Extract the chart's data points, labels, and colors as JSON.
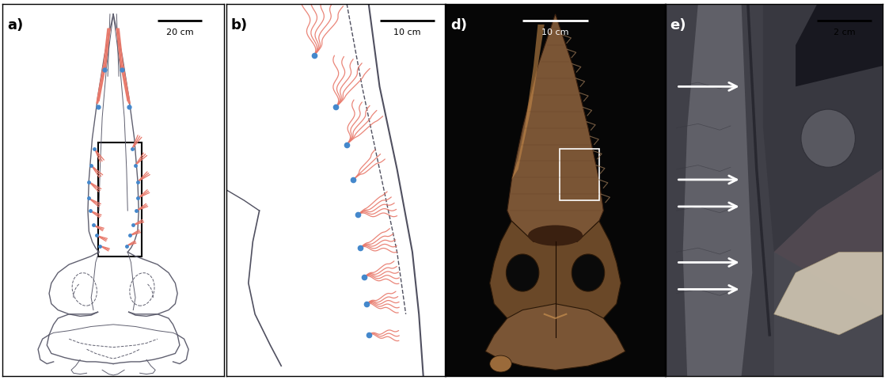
{
  "fig_bg": "#ffffff",
  "border_color": "#000000",
  "salmon_color": "#E8786A",
  "blue_dot_color": "#4488CC",
  "panel_a": {
    "bg": "#ffffff",
    "label": "a)",
    "scale_text": "20 cm",
    "skull_color": "#707070",
    "label_color": "#000000"
  },
  "panel_b": {
    "bg": "#ffffff",
    "label": "b)",
    "scale_text": "10 cm",
    "label_color": "#000000"
  },
  "panel_d": {
    "bg": "#080808",
    "label": "d)",
    "scale_text": "10 cm",
    "label_color": "#ffffff",
    "scalebar_color": "#ffffff"
  },
  "panel_e": {
    "bg": "#ffffff",
    "label": "e)",
    "scale_text": "2 cm",
    "label_color": "#ffffff",
    "scalebar_color": "#000000",
    "arrow_color": "#ffffff",
    "rock_dark": "#3A3A42",
    "rock_mid": "#505058",
    "rock_light": "#686870"
  }
}
